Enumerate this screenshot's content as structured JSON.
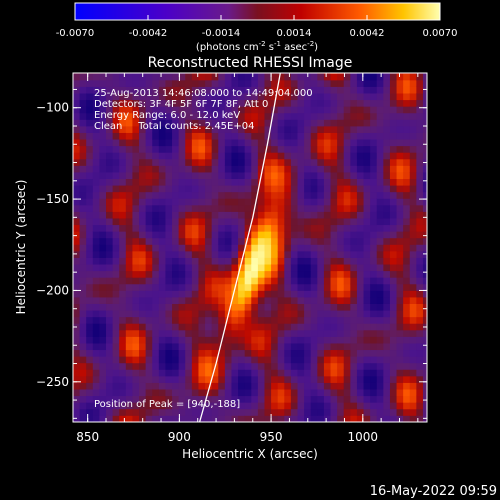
{
  "chart_data": {
    "type": "heatmap",
    "title": "Reconstructed RHESSI Image",
    "xlabel": "Heliocentric X (arcsec)",
    "ylabel": "Heliocentric Y (arcsec)",
    "xlim": [
      842,
      1035
    ],
    "ylim": [
      -272,
      -81
    ],
    "x_ticks": [
      850,
      900,
      950,
      1000
    ],
    "y_ticks": [
      -100,
      -150,
      -200,
      -250
    ],
    "colorbar": {
      "min": -0.007,
      "max": 0.007,
      "ticks": [
        -0.007,
        -0.0042,
        -0.0014,
        0.0014,
        0.0042,
        0.007
      ],
      "tick_labels": [
        "-0.0070",
        "-0.0042",
        "-0.0014",
        "0.0014",
        "0.0042",
        "0.0070"
      ],
      "label": "(photons cm",
      "label_exp1": "-2",
      "label_mid": " s",
      "label_exp2": "-1",
      "label_end": " asec",
      "label_exp3": "-2",
      "label_close": ")"
    },
    "annotations": [
      "25-Aug-2013 14:46:08.000 to 14:49:04.000",
      "Detectors: 3F 4F 5F 6F 7F 8F, Att 0",
      "Energy Range: 6.0 - 12.0 keV",
      "Clean     Total counts: 2.45E+04"
    ],
    "peak_label": "Position of Peak = [940,-188]",
    "peak": [
      940,
      -188
    ],
    "limb_curve": [
      [
        911,
        -272
      ],
      [
        920,
        -240
      ],
      [
        930,
        -200
      ],
      [
        940,
        -160
      ],
      [
        948,
        -120
      ],
      [
        955,
        -81
      ]
    ]
  },
  "footer_date": "16-May-2022 09:59"
}
